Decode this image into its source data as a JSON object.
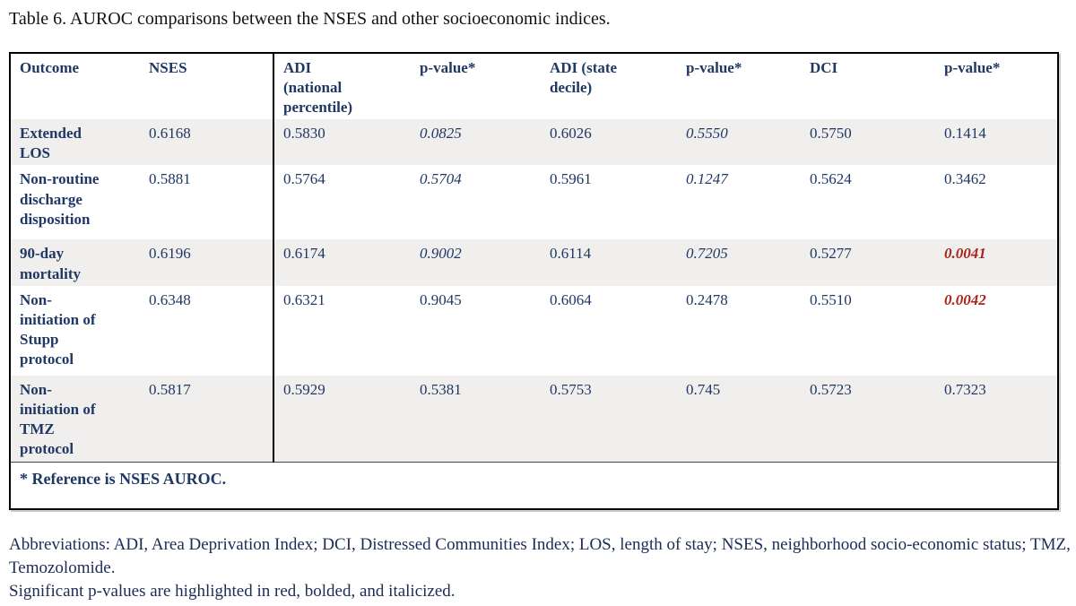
{
  "title": "Table 6. AUROC comparisons between the NSES and other socioeconomic indices.",
  "colors": {
    "navy_text": "#1f3864",
    "significant_red": "#aa231c",
    "row_stripe": "#f0efee",
    "table_border": "#000000"
  },
  "table": {
    "columns": [
      {
        "label": "Outcome"
      },
      {
        "label": "NSES"
      },
      {
        "label": "ADI (national percentile)"
      },
      {
        "label": "p-value*"
      },
      {
        "label": "ADI (state decile)"
      },
      {
        "label": "p-value*"
      },
      {
        "label": "DCI"
      },
      {
        "label": "p-value*"
      }
    ],
    "rows": [
      {
        "outcome": "Extended LOS",
        "striped": true,
        "cells": [
          {
            "text": "0.6168"
          },
          {
            "text": "0.5830"
          },
          {
            "text": "0.0825",
            "italic": true
          },
          {
            "text": "0.6026"
          },
          {
            "text": "0.5550",
            "italic": true
          },
          {
            "text": "0.5750"
          },
          {
            "text": "0.1414"
          }
        ]
      },
      {
        "outcome": "Non-routine discharge disposition",
        "striped": false,
        "cells": [
          {
            "text": "0.5881"
          },
          {
            "text": "0.5764"
          },
          {
            "text": "0.5704",
            "italic": true
          },
          {
            "text": "0.5961"
          },
          {
            "text": "0.1247",
            "italic": true
          },
          {
            "text": "0.5624"
          },
          {
            "text": "0.3462"
          }
        ]
      },
      {
        "outcome": "90-day mortality",
        "striped": true,
        "cells": [
          {
            "text": "0.6196"
          },
          {
            "text": "0.6174"
          },
          {
            "text": "0.9002",
            "italic": true
          },
          {
            "text": "0.6114"
          },
          {
            "text": "0.7205",
            "italic": true
          },
          {
            "text": "0.5277"
          },
          {
            "text": "0.0041",
            "significant": true
          }
        ]
      },
      {
        "outcome": "Non-initiation of Stupp protocol",
        "striped": false,
        "cells": [
          {
            "text": "0.6348"
          },
          {
            "text": "0.6321"
          },
          {
            "text": "0.9045"
          },
          {
            "text": "0.6064"
          },
          {
            "text": "0.2478"
          },
          {
            "text": "0.5510"
          },
          {
            "text": "0.0042",
            "significant": true
          }
        ]
      },
      {
        "outcome": "Non-initiation of TMZ protocol",
        "striped": true,
        "cells": [
          {
            "text": "0.5817"
          },
          {
            "text": "0.5929"
          },
          {
            "text": "0.5381"
          },
          {
            "text": "0.5753"
          },
          {
            "text": "0.745"
          },
          {
            "text": "0.5723"
          },
          {
            "text": "0.7323"
          }
        ]
      }
    ],
    "footnote": "* Reference is NSES AUROC."
  },
  "notes": {
    "abbreviations": "Abbreviations: ADI, Area Deprivation Index; DCI, Distressed Communities Index; LOS, length of stay; NSES, neighborhood socio-economic status; TMZ, Temozolomide.",
    "significance": "Significant p-values are highlighted in red, bolded, and italicized."
  }
}
